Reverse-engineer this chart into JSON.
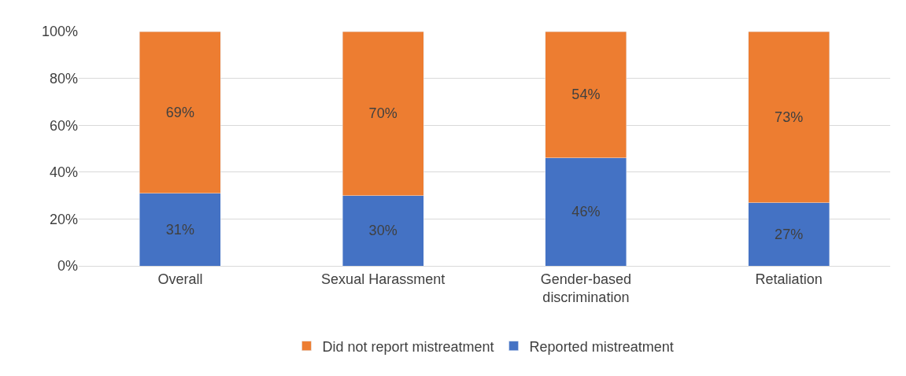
{
  "chart_data": {
    "type": "bar",
    "stacked": true,
    "categories": [
      "Overall",
      "Sexual Harassment",
      "Gender-based discrimination",
      "Retaliation"
    ],
    "series": [
      {
        "name": "Reported mistreatment",
        "color": "#4472c4",
        "values": [
          31,
          30,
          46,
          27
        ],
        "value_labels": [
          "31%",
          "30%",
          "46%",
          "27%"
        ]
      },
      {
        "name": "Did not report mistreatment",
        "color": "#ed7d31",
        "values": [
          69,
          70,
          54,
          73
        ],
        "value_labels": [
          "69%",
          "70%",
          "54%",
          "73%"
        ]
      }
    ],
    "ylim": [
      0,
      100
    ],
    "yticks": [
      {
        "value": 0,
        "label": "0%"
      },
      {
        "value": 20,
        "label": "20%"
      },
      {
        "value": 40,
        "label": "40%"
      },
      {
        "value": 60,
        "label": "60%"
      },
      {
        "value": 80,
        "label": "80%"
      },
      {
        "value": 100,
        "label": "100%"
      }
    ],
    "grid": "y",
    "legend": "bottom"
  }
}
